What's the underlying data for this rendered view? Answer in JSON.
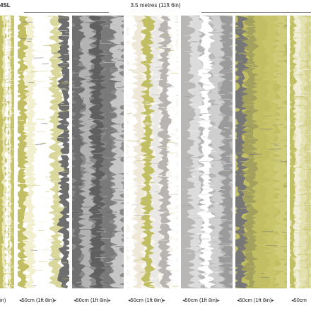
{
  "header": {
    "code": "4SL",
    "total_width": "3.5 metres (11ft 6in)"
  },
  "panels": [
    {
      "base": "#c2be63",
      "stripes": [
        "#c2be63",
        "#e9e6b8",
        "#ffffff",
        "#f4f3e2",
        "#c9c56b"
      ]
    },
    {
      "base": "#ffffff",
      "stripes": [
        "#c2be63",
        "#f2efcf",
        "#ffffff",
        "#ffffff",
        "#d9d79c",
        "#6e6e6e"
      ]
    },
    {
      "base": "#8a8a8a",
      "stripes": [
        "#6f6f6f",
        "#b3b3b3",
        "#5f5f5f",
        "#7a7a7a",
        "#c6c6c6"
      ]
    },
    {
      "base": "#f7f5ee",
      "stripes": [
        "#ffffff",
        "#efe8d8",
        "#c2be63",
        "#e9e8e4",
        "#b7b4b2",
        "#ffffff"
      ]
    },
    {
      "base": "#b9b6b6",
      "stripes": [
        "#b9b6b6",
        "#dcdcdc",
        "#ffffff",
        "#cfcfcf",
        "#9b9b9b"
      ]
    },
    {
      "base": "#ffffff",
      "stripes": [
        "#ffffff",
        "#fbfaf3",
        "#8c8c8c",
        "#d9d79c",
        "#ffffff"
      ]
    },
    {
      "base": "#c2be63",
      "stripes": [
        "#777777",
        "#a3a15d",
        "#c2be63",
        "#c9c56b",
        "#cfcc7a"
      ]
    },
    {
      "base": "#e4e1b0",
      "stripes": [
        "#c2be63",
        "#f0eed6",
        "#e4e1b0",
        "#d6d290"
      ]
    }
  ],
  "strip_labels": [
    "in)",
    "50cm (1ft 8in)",
    "50cm (1ft 8in)",
    "50cm (1ft 8in)",
    "50cm (1ft 8in)",
    "50cm (1ft 8in)",
    "50cm (1ft 8in)",
    "50cm"
  ]
}
